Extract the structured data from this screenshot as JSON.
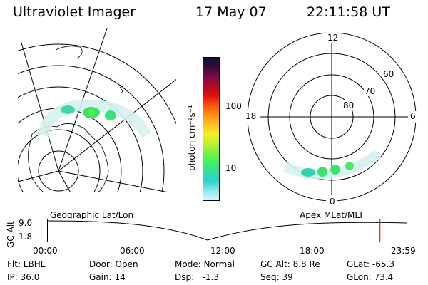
{
  "header": {
    "title": "Ultraviolet Imager",
    "date": "17 May 07",
    "time": "22:11:58 UT"
  },
  "colorbar": {
    "unit_label": "photon cm⁻²s⁻¹",
    "tick_labels": [
      "100",
      "10"
    ],
    "colors": [
      "#111133",
      "#3a0a3a",
      "#7a0a4a",
      "#b00a20",
      "#e01010",
      "#ff5010",
      "#ff9010",
      "#ffc020",
      "#f0f020",
      "#c0f030",
      "#80f040",
      "#40f060",
      "#30e0a0",
      "#30d0d0",
      "#90e8e8",
      "#d8f4f4"
    ]
  },
  "polar_plot": {
    "labels": {
      "top": "12",
      "bottom": "0",
      "left": "18",
      "right": "6"
    },
    "lat_labels": [
      "60",
      "70",
      "80"
    ]
  },
  "plot_labels": {
    "left": "Geographic Lat/Lon",
    "right": "Apex MLat/MLT"
  },
  "timeline": {
    "axis_label": "GC Alt",
    "y_labels": [
      "9.0",
      "1.8"
    ],
    "x_labels": [
      "00:00",
      "06:00",
      "12:00",
      "18:00",
      "23:59"
    ],
    "current_fraction": 0.926
  },
  "info": {
    "row1": [
      {
        "label": "Flt: LBHL"
      },
      {
        "label": "Door: Open"
      },
      {
        "label": "Mode: Normal"
      },
      {
        "label": "GC Alt: 8.8 Re"
      },
      {
        "label": "GLat: -65.3"
      }
    ],
    "row2": [
      {
        "label": "IP: 36.0"
      },
      {
        "label": "Gain: 14"
      },
      {
        "label": "Dsp:   -1.3"
      },
      {
        "label": "Seq: 39"
      },
      {
        "label": "GLon: 73.4"
      }
    ]
  }
}
